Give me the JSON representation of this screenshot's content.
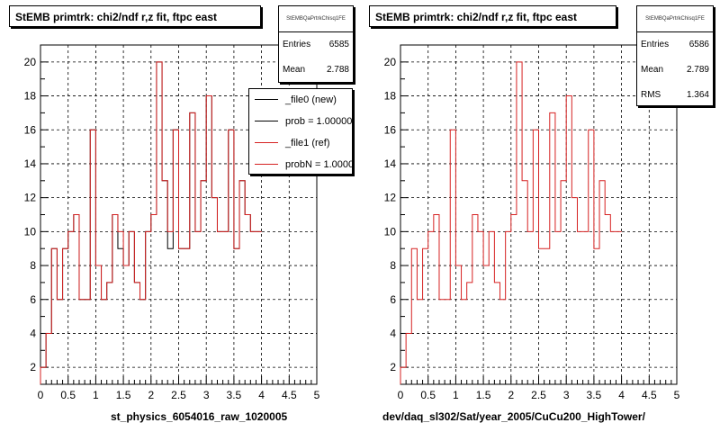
{
  "colors": {
    "new": "#000000",
    "ref": "#d62222",
    "grid": "#000000"
  },
  "left": {
    "title": "StEMB primtrk: chi2/ndf r,z fit, ftpc east",
    "stats": {
      "name": "StEMBQaPrtrkChisq1FE",
      "rows": [
        {
          "label": "Entries",
          "value": "6585"
        },
        {
          "label": "Mean",
          "value": "2.788"
        }
      ]
    },
    "legend": [
      {
        "label": "_file0 (new)",
        "color": "#000000"
      },
      {
        "label": "prob = 1.000000",
        "color": "#000000"
      },
      {
        "label": "_file1 (ref)",
        "color": "#d62222"
      },
      {
        "label": "probN = 1.000000",
        "color": "#d62222"
      }
    ],
    "xlabel": "st_physics_6054016_raw_1020005"
  },
  "right": {
    "title": "StEMB primtrk: chi2/ndf r,z fit, ftpc east",
    "stats": {
      "name": "StEMBQaPrtrkChisq1FE",
      "rows": [
        {
          "label": "Entries",
          "value": "6586"
        },
        {
          "label": "Mean",
          "value": "2.789"
        },
        {
          "label": "RMS",
          "value": "1.364"
        }
      ]
    },
    "xlabel": "dev/daq_sl302/Sat/year_2005/CuCu200_HighTower/"
  },
  "chart_data": [
    {
      "type": "histogram",
      "title": "StEMB primtrk: chi2/ndf r,z fit, ftpc east",
      "xlabel": "st_physics_6054016_raw_1020005",
      "xlim": [
        0,
        5
      ],
      "ylim": [
        1,
        21
      ],
      "x_ticks": [
        "0",
        "0.5",
        "1",
        "1.5",
        "2",
        "2.5",
        "3",
        "3.5",
        "4",
        "4.5",
        "5"
      ],
      "y_ticks": [
        "2",
        "4",
        "6",
        "8",
        "10",
        "12",
        "14",
        "16",
        "18",
        "20"
      ],
      "grid": true,
      "bin_width": 0.1,
      "series": [
        {
          "name": "_file0 (new)",
          "color": "#000000",
          "values": [
            2,
            4,
            9,
            6,
            9,
            10,
            11,
            6,
            6,
            16,
            8,
            6,
            7,
            11,
            9,
            8,
            10,
            7,
            6,
            10,
            11,
            20,
            13,
            9,
            16,
            9,
            9,
            17,
            10,
            13,
            18,
            12,
            10,
            10,
            16,
            9,
            13,
            11,
            10,
            10
          ]
        },
        {
          "name": "_file1 (ref)",
          "color": "#d62222",
          "values": [
            2,
            4,
            9,
            6,
            9,
            10,
            11,
            6,
            6,
            16,
            8,
            6,
            7,
            11,
            10,
            8,
            10,
            7,
            6,
            10,
            11,
            20,
            13,
            10,
            16,
            9,
            9,
            17,
            10,
            13,
            18,
            12,
            10,
            10,
            16,
            9,
            13,
            11,
            10,
            10
          ]
        }
      ]
    },
    {
      "type": "histogram",
      "title": "StEMB primtrk: chi2/ndf r,z fit, ftpc east",
      "xlabel": "dev/daq_sl302/Sat/year_2005/CuCu200_HighTower/",
      "xlim": [
        0,
        5
      ],
      "ylim": [
        1,
        21
      ],
      "x_ticks": [
        "0",
        "0.5",
        "1",
        "1.5",
        "2",
        "2.5",
        "3",
        "3.5",
        "4",
        "4.5",
        "5"
      ],
      "y_ticks": [
        "2",
        "4",
        "6",
        "8",
        "10",
        "12",
        "14",
        "16",
        "18",
        "20"
      ],
      "grid": true,
      "bin_width": 0.1,
      "series": [
        {
          "name": "_file1 (ref)",
          "color": "#d62222",
          "values": [
            2,
            4,
            9,
            6,
            9,
            10,
            11,
            6,
            6,
            16,
            8,
            6,
            7,
            11,
            10,
            8,
            10,
            7,
            6,
            10,
            11,
            20,
            13,
            10,
            16,
            9,
            9,
            17,
            10,
            13,
            18,
            12,
            10,
            10,
            16,
            9,
            13,
            11,
            10,
            10
          ]
        }
      ]
    }
  ]
}
